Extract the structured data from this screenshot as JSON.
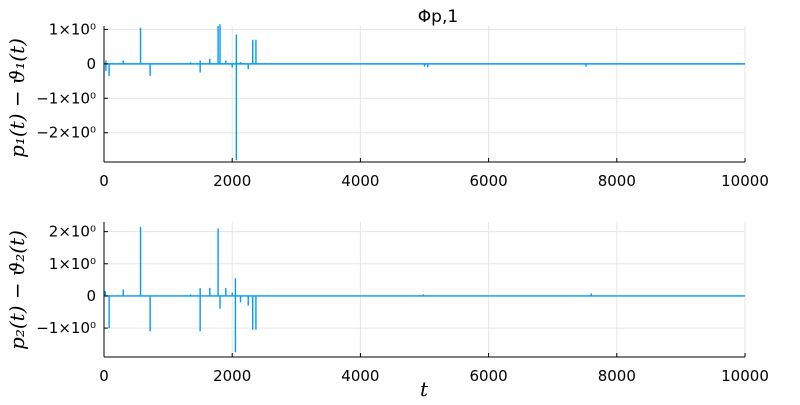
{
  "chart_data": [
    {
      "type": "line",
      "title": "Φp,1",
      "ylabel": "p₁(t) − ϑ₁(t)",
      "xlabel": "",
      "xlim": [
        0,
        10000
      ],
      "ylim": [
        -2.85,
        1.1
      ],
      "grid": true,
      "x_ticks": [
        0,
        2000,
        4000,
        6000,
        8000,
        10000
      ],
      "x_tick_labels": [
        "0",
        "2000",
        "4000",
        "6000",
        "8000",
        "10000"
      ],
      "y_ticks": [
        1,
        0,
        -1,
        -2
      ],
      "y_tick_labels": [
        "1×10⁰",
        "0",
        "−1×10⁰",
        "−2×10⁰"
      ],
      "series": [
        {
          "color": "#009af9",
          "baseline": 0,
          "spikes": [
            {
              "x": 30,
              "lo": -0.2,
              "hi": 0.1
            },
            {
              "x": 80,
              "lo": -0.35,
              "hi": 0.0
            },
            {
              "x": 300,
              "lo": 0.0,
              "hi": 0.1
            },
            {
              "x": 570,
              "lo": 0.0,
              "hi": 1.05
            },
            {
              "x": 720,
              "lo": -0.35,
              "hi": 0.0
            },
            {
              "x": 1350,
              "lo": 0.0,
              "hi": 0.05
            },
            {
              "x": 1500,
              "lo": -0.25,
              "hi": 0.1
            },
            {
              "x": 1650,
              "lo": 0.0,
              "hi": 0.15
            },
            {
              "x": 1780,
              "lo": 0.0,
              "hi": 1.1
            },
            {
              "x": 1810,
              "lo": 0.0,
              "hi": 1.15
            },
            {
              "x": 1900,
              "lo": 0.0,
              "hi": 0.1
            },
            {
              "x": 2000,
              "lo": -0.1,
              "hi": 0.0
            },
            {
              "x": 2065,
              "lo": -2.8,
              "hi": 0.85
            },
            {
              "x": 2130,
              "lo": 0.0,
              "hi": 0.05
            },
            {
              "x": 2250,
              "lo": -0.15,
              "hi": 0.0
            },
            {
              "x": 2320,
              "lo": 0.0,
              "hi": 0.7
            },
            {
              "x": 2370,
              "lo": 0.0,
              "hi": 0.7
            },
            {
              "x": 5000,
              "lo": -0.08,
              "hi": 0.0
            },
            {
              "x": 5050,
              "lo": -0.1,
              "hi": 0.0
            },
            {
              "x": 7520,
              "lo": -0.08,
              "hi": 0.0
            }
          ]
        }
      ]
    },
    {
      "type": "line",
      "title": "",
      "ylabel": "p₂(t) − ϑ₂(t)",
      "xlabel": "t",
      "xlim": [
        0,
        10000
      ],
      "ylim": [
        -1.9,
        2.3
      ],
      "grid": true,
      "x_ticks": [
        0,
        2000,
        4000,
        6000,
        8000,
        10000
      ],
      "x_tick_labels": [
        "0",
        "2000",
        "4000",
        "6000",
        "8000",
        "10000"
      ],
      "y_ticks": [
        2,
        1,
        0,
        -1
      ],
      "y_tick_labels": [
        "2×10⁰",
        "1×10⁰",
        "0",
        "−1×10⁰"
      ],
      "series": [
        {
          "color": "#009af9",
          "baseline": 0,
          "spikes": [
            {
              "x": 20,
              "lo": 0.0,
              "hi": 0.15
            },
            {
              "x": 80,
              "lo": -1.0,
              "hi": 0.0
            },
            {
              "x": 300,
              "lo": 0.0,
              "hi": 0.2
            },
            {
              "x": 570,
              "lo": 0.0,
              "hi": 2.15
            },
            {
              "x": 720,
              "lo": -1.1,
              "hi": 0.0
            },
            {
              "x": 1350,
              "lo": 0.0,
              "hi": 0.05
            },
            {
              "x": 1500,
              "lo": -1.1,
              "hi": 0.25
            },
            {
              "x": 1650,
              "lo": 0.0,
              "hi": 0.25
            },
            {
              "x": 1780,
              "lo": 0.0,
              "hi": 2.1
            },
            {
              "x": 1810,
              "lo": -0.4,
              "hi": 0.0
            },
            {
              "x": 1900,
              "lo": 0.0,
              "hi": 0.25
            },
            {
              "x": 2000,
              "lo": 0.0,
              "hi": 0.1
            },
            {
              "x": 2050,
              "lo": -1.75,
              "hi": 0.55
            },
            {
              "x": 2130,
              "lo": -0.2,
              "hi": 0.0
            },
            {
              "x": 2250,
              "lo": -0.3,
              "hi": 0.0
            },
            {
              "x": 2320,
              "lo": -1.05,
              "hi": 0.0
            },
            {
              "x": 2370,
              "lo": -1.05,
              "hi": 0.0
            },
            {
              "x": 4980,
              "lo": 0.0,
              "hi": 0.05
            },
            {
              "x": 7600,
              "lo": 0.0,
              "hi": 0.08
            }
          ]
        }
      ]
    }
  ]
}
